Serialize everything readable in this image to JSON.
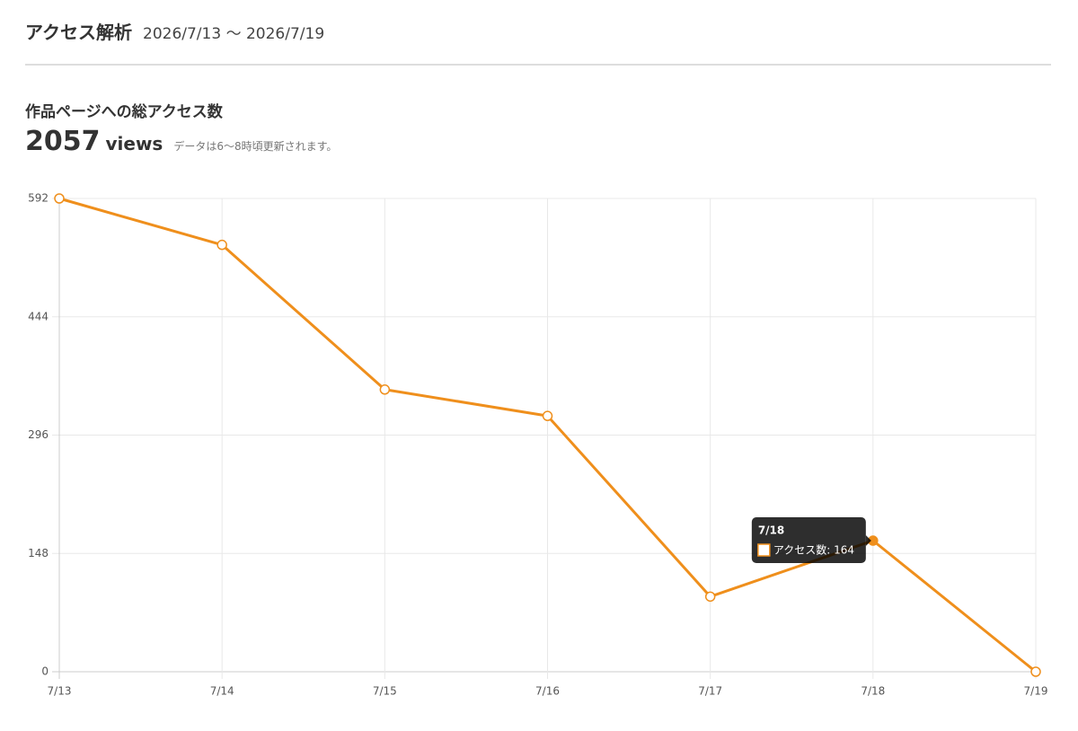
{
  "header": {
    "title": "アクセス解析",
    "range": "2026/7/13 〜 2026/7/19"
  },
  "summary": {
    "title": "作品ページへの総アクセス数",
    "total": 2057,
    "unit": "views",
    "note": "データは6〜8時頃更新されます。"
  },
  "chart_data": {
    "type": "line",
    "categories": [
      "7/13",
      "7/14",
      "7/15",
      "7/16",
      "7/17",
      "7/18",
      "7/19"
    ],
    "series": [
      {
        "name": "アクセス数",
        "color": "#ef8f1c",
        "values": [
          592,
          534,
          353,
          320,
          94,
          164,
          0
        ]
      }
    ],
    "ylim": [
      0,
      592
    ],
    "yticks": [
      0,
      148,
      296,
      444,
      592
    ],
    "grid": true,
    "tooltip": {
      "title": "7/18",
      "label": "アクセス数: 164"
    }
  }
}
